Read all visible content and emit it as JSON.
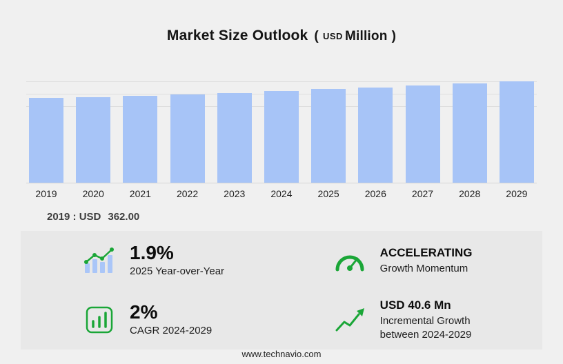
{
  "title": {
    "main": "Market Size Outlook",
    "paren_open": "(",
    "unit_currency": "USD",
    "unit_scale": "Million",
    "paren_close": ")"
  },
  "chart_data": {
    "type": "bar",
    "title": "Market Size Outlook (USD Million)",
    "categories": [
      "2019",
      "2020",
      "2021",
      "2022",
      "2023",
      "2024",
      "2025",
      "2026",
      "2027",
      "2028",
      "2029"
    ],
    "values": [
      362.0,
      365.5,
      370.2,
      376.5,
      383.4,
      391.4,
      398.8,
      406.4,
      414.5,
      423.1,
      432.0
    ],
    "xlabel": "",
    "ylabel": "",
    "ylim": [
      0,
      440
    ],
    "grid": true,
    "legend": false,
    "bar_color": "#a7c4f7"
  },
  "annotation": {
    "label": "2019 : USD",
    "value": "362.00"
  },
  "stats": [
    {
      "icon": "trend-bars-icon",
      "value": "1.9%",
      "label": "2025 Year-over-Year"
    },
    {
      "icon": "speedometer-icon",
      "value": "ACCELERATING",
      "label": "Growth Momentum"
    },
    {
      "icon": "cagr-chart-icon",
      "value": "2%",
      "label": "CAGR 2024-2029"
    },
    {
      "icon": "growth-arrow-icon",
      "value": "USD 40.6 Mn",
      "label": "Incremental Growth between 2024-2029"
    }
  ],
  "footer": {
    "url": "www.technavio.com"
  },
  "colors": {
    "accent_green": "#1aa637",
    "bar_blue": "#a7c4f7",
    "page_bg": "#f0f0f0",
    "panel_bg": "#e8e8e8"
  }
}
